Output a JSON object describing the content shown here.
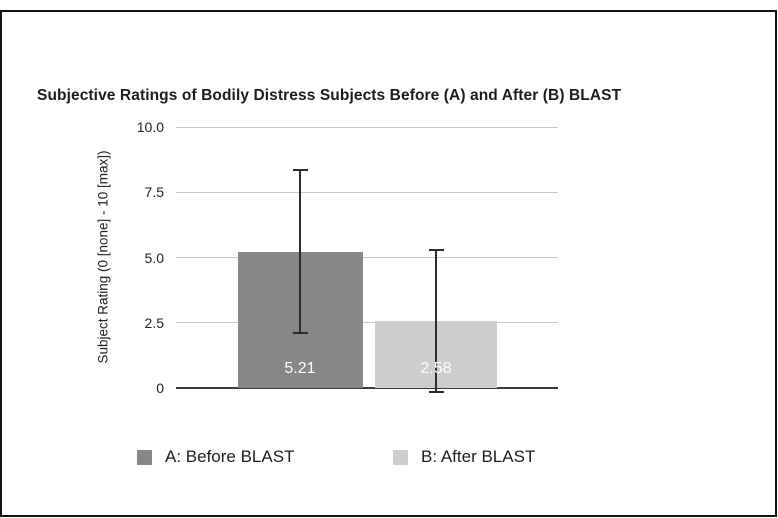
{
  "chart_data": {
    "type": "bar",
    "title": "Subjective Ratings of Bodily Distress Subjects Before (A) and After (B) BLAST",
    "ylabel": "Subject Rating (0 [none] - 10 [max])",
    "xlabel": "",
    "ylim": [
      0,
      10
    ],
    "yticks": [
      0,
      2.5,
      5,
      7.5,
      10
    ],
    "ytick_labels": [
      "0",
      "2.5",
      "5.0",
      "7.5",
      "10.0"
    ],
    "grid": true,
    "legend_position": "bottom",
    "series": [
      {
        "name": "A: Before BLAST",
        "value": 5.21,
        "value_label": "5.21",
        "error_low": 2.1,
        "error_high": 8.35,
        "color": "#878787"
      },
      {
        "name": "B: After BLAST",
        "value": 2.58,
        "value_label": "2.58",
        "error_low": -0.15,
        "error_high": 5.28,
        "color": "#cdcdcb"
      }
    ],
    "colors": {
      "grid": "#c9c9c9",
      "axis": "#3a3a3a",
      "error_bar": "#2d2d2d",
      "value_label": "#ffffff",
      "title_text": "#1c1c1c"
    }
  }
}
